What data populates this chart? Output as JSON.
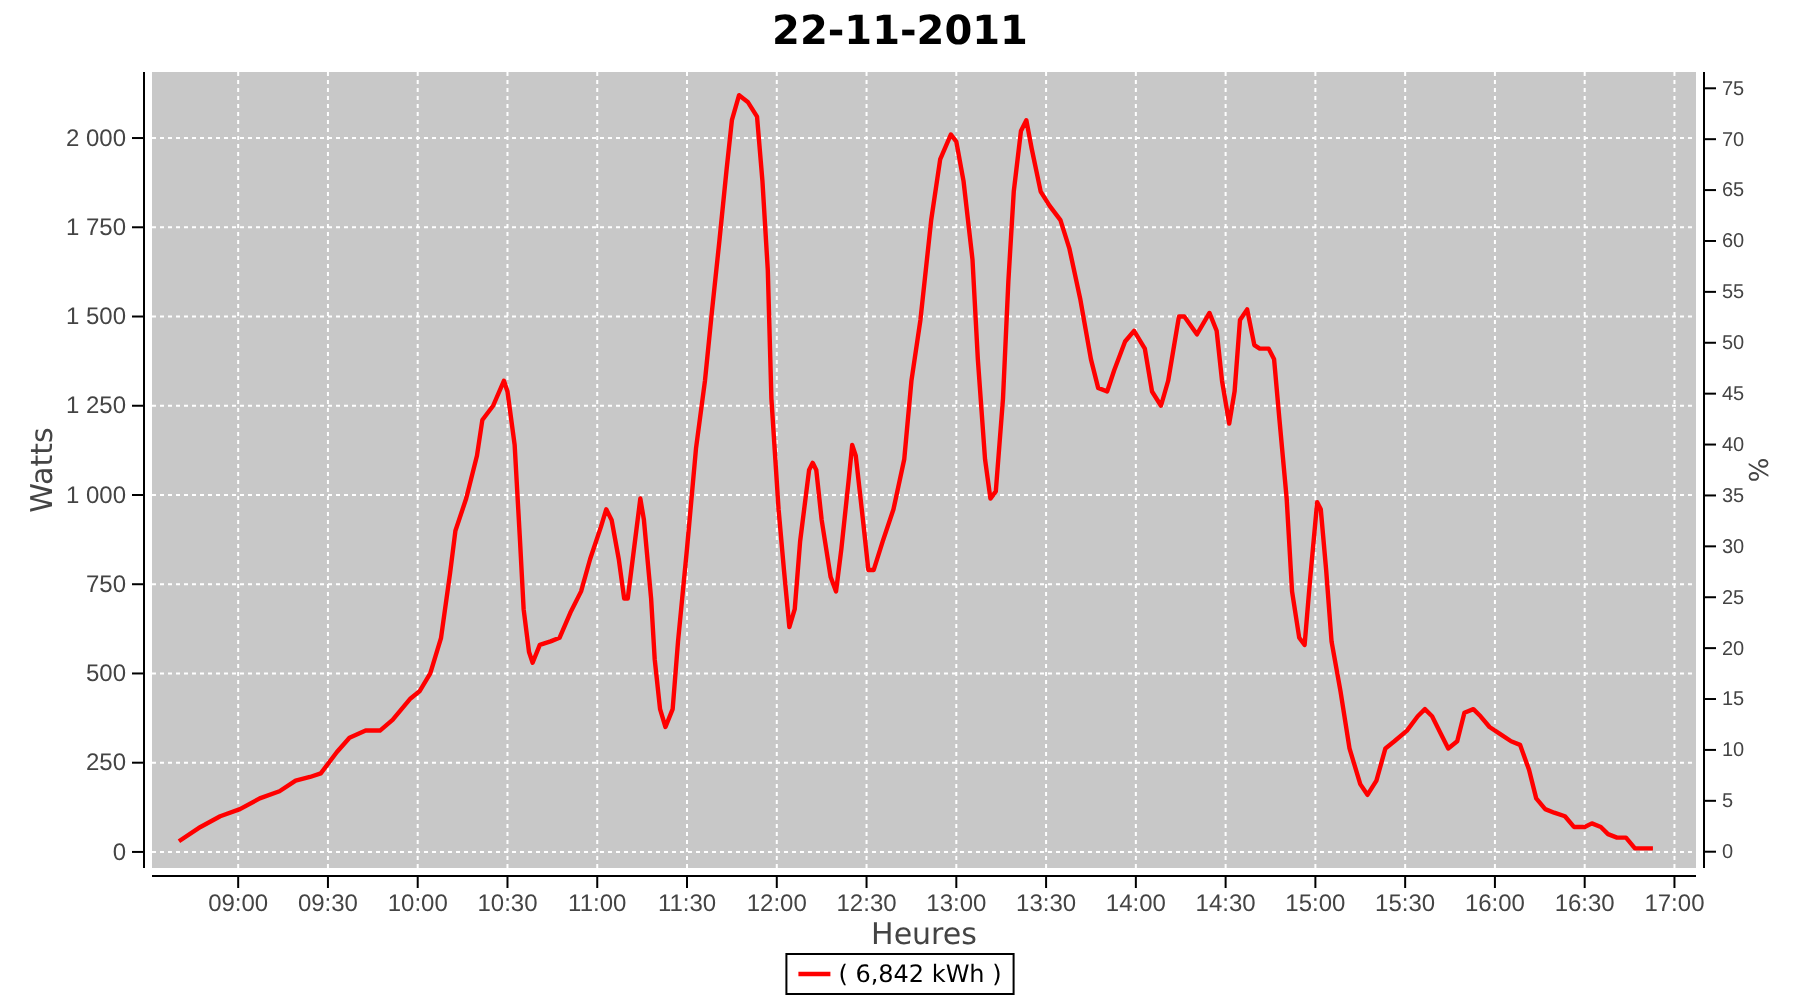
{
  "chart_data": {
    "type": "line",
    "title": "22-11-2011",
    "xlabel": "Heures",
    "ylabel": "Watts",
    "y2label": "%",
    "x": [
      8.67,
      8.79,
      8.9,
      9.01,
      9.12,
      9.23,
      9.32,
      9.4,
      9.46,
      9.55,
      9.62,
      9.71,
      9.79,
      9.86,
      9.96,
      10.01,
      10.07,
      10.13,
      10.18,
      10.21,
      10.27,
      10.33,
      10.36,
      10.42,
      10.48,
      10.5,
      10.54,
      10.57,
      10.59,
      10.62,
      10.64,
      10.68,
      10.74,
      10.79,
      10.85,
      10.91,
      10.96,
      11.02,
      11.05,
      11.08,
      11.12,
      11.15,
      11.17,
      11.21,
      11.24,
      11.26,
      11.3,
      11.32,
      11.35,
      11.38,
      11.42,
      11.45,
      11.5,
      11.55,
      11.6,
      11.64,
      11.68,
      11.72,
      11.75,
      11.79,
      11.84,
      11.89,
      11.92,
      11.95,
      11.97,
      12.01,
      12.04,
      12.07,
      12.1,
      12.13,
      12.18,
      12.2,
      12.22,
      12.25,
      12.3,
      12.33,
      12.36,
      12.4,
      12.42,
      12.44,
      12.48,
      12.51,
      12.54,
      12.59,
      12.65,
      12.71,
      12.75,
      12.8,
      12.86,
      12.91,
      12.97,
      13.0,
      13.04,
      13.09,
      13.12,
      13.16,
      13.19,
      13.22,
      13.26,
      13.29,
      13.32,
      13.36,
      13.39,
      13.42,
      13.47,
      13.52,
      13.58,
      13.63,
      13.69,
      13.75,
      13.79,
      13.84,
      13.88,
      13.94,
      13.99,
      14.05,
      14.09,
      14.14,
      14.18,
      14.24,
      14.27,
      14.34,
      14.41,
      14.45,
      14.48,
      14.52,
      14.55,
      14.58,
      14.62,
      14.66,
      14.69,
      14.74,
      14.77,
      14.8,
      14.84,
      14.87,
      14.91,
      14.94,
      14.97,
      15.01,
      15.03,
      15.06,
      15.09,
      15.14,
      15.19,
      15.25,
      15.29,
      15.34,
      15.39,
      15.44,
      15.51,
      15.57,
      15.61,
      15.65,
      15.7,
      15.74,
      15.79,
      15.83,
      15.88,
      15.92,
      15.97,
      16.03,
      16.09,
      16.14,
      16.19,
      16.23,
      16.28,
      16.33,
      16.39,
      16.44,
      16.5,
      16.54,
      16.59,
      16.63,
      16.68,
      16.73,
      16.78,
      16.83,
      16.88
    ],
    "series": [
      {
        "name": "( 6,842 kWh )",
        "color": "#ff0000",
        "values": [
          30,
          70,
          100,
          120,
          150,
          170,
          200,
          210,
          220,
          280,
          320,
          340,
          340,
          370,
          430,
          450,
          500,
          600,
          780,
          900,
          990,
          1110,
          1210,
          1250,
          1320,
          1290,
          1140,
          870,
          680,
          560,
          530,
          580,
          590,
          600,
          670,
          730,
          820,
          910,
          960,
          930,
          820,
          710,
          710,
          870,
          990,
          930,
          710,
          540,
          400,
          350,
          400,
          590,
          850,
          1130,
          1320,
          1520,
          1710,
          1910,
          2050,
          2120,
          2100,
          2060,
          1880,
          1630,
          1270,
          960,
          790,
          630,
          680,
          870,
          1070,
          1090,
          1070,
          930,
          770,
          730,
          850,
          1040,
          1140,
          1110,
          930,
          790,
          790,
          870,
          960,
          1100,
          1320,
          1490,
          1770,
          1940,
          2010,
          1990,
          1880,
          1660,
          1380,
          1100,
          990,
          1010,
          1270,
          1600,
          1850,
          2020,
          2050,
          1970,
          1850,
          1810,
          1770,
          1690,
          1550,
          1380,
          1300,
          1290,
          1350,
          1430,
          1460,
          1410,
          1290,
          1250,
          1320,
          1500,
          1500,
          1450,
          1510,
          1460,
          1320,
          1200,
          1290,
          1490,
          1520,
          1420,
          1410,
          1410,
          1380,
          1210,
          990,
          730,
          600,
          580,
          760,
          980,
          960,
          790,
          590,
          450,
          290,
          190,
          160,
          200,
          290,
          310,
          340,
          380,
          400,
          380,
          330,
          290,
          310,
          390,
          400,
          380,
          350,
          330,
          310,
          300,
          230,
          150,
          120,
          110,
          100,
          70,
          70,
          80,
          70,
          50,
          40,
          40,
          10,
          10,
          10
        ]
      }
    ],
    "xlim": [
      8.52,
      17.12
    ],
    "ylim": [
      -45,
      2185
    ],
    "y2lim": [
      -1.6,
      76.6
    ],
    "xticks": [
      {
        "value": 9,
        "label": "09:00"
      },
      {
        "value": 9.5,
        "label": "09:30"
      },
      {
        "value": 10,
        "label": "10:00"
      },
      {
        "value": 10.5,
        "label": "10:30"
      },
      {
        "value": 11,
        "label": "11:00"
      },
      {
        "value": 11.5,
        "label": "11:30"
      },
      {
        "value": 12,
        "label": "12:00"
      },
      {
        "value": 12.5,
        "label": "12:30"
      },
      {
        "value": 13,
        "label": "13:00"
      },
      {
        "value": 13.5,
        "label": "13:30"
      },
      {
        "value": 14,
        "label": "14:00"
      },
      {
        "value": 14.5,
        "label": "14:30"
      },
      {
        "value": 15,
        "label": "15:00"
      },
      {
        "value": 15.5,
        "label": "15:30"
      },
      {
        "value": 16,
        "label": "16:00"
      },
      {
        "value": 16.5,
        "label": "16:30"
      },
      {
        "value": 17,
        "label": "17:00"
      }
    ],
    "yticks": [
      0,
      250,
      500,
      750,
      {
        "value": 1000,
        "label": "1 000"
      },
      {
        "value": 1250,
        "label": "1 250"
      },
      {
        "value": 1500,
        "label": "1 500"
      },
      {
        "value": 1750,
        "label": "1 750"
      },
      {
        "value": 2000,
        "label": "2 000"
      }
    ],
    "y2ticks": [
      0,
      5,
      10,
      15,
      20,
      25,
      30,
      35,
      40,
      45,
      50,
      55,
      60,
      65,
      70,
      75
    ],
    "grid": true,
    "legend": "bottom",
    "marker": "none",
    "line_style": "solid"
  }
}
